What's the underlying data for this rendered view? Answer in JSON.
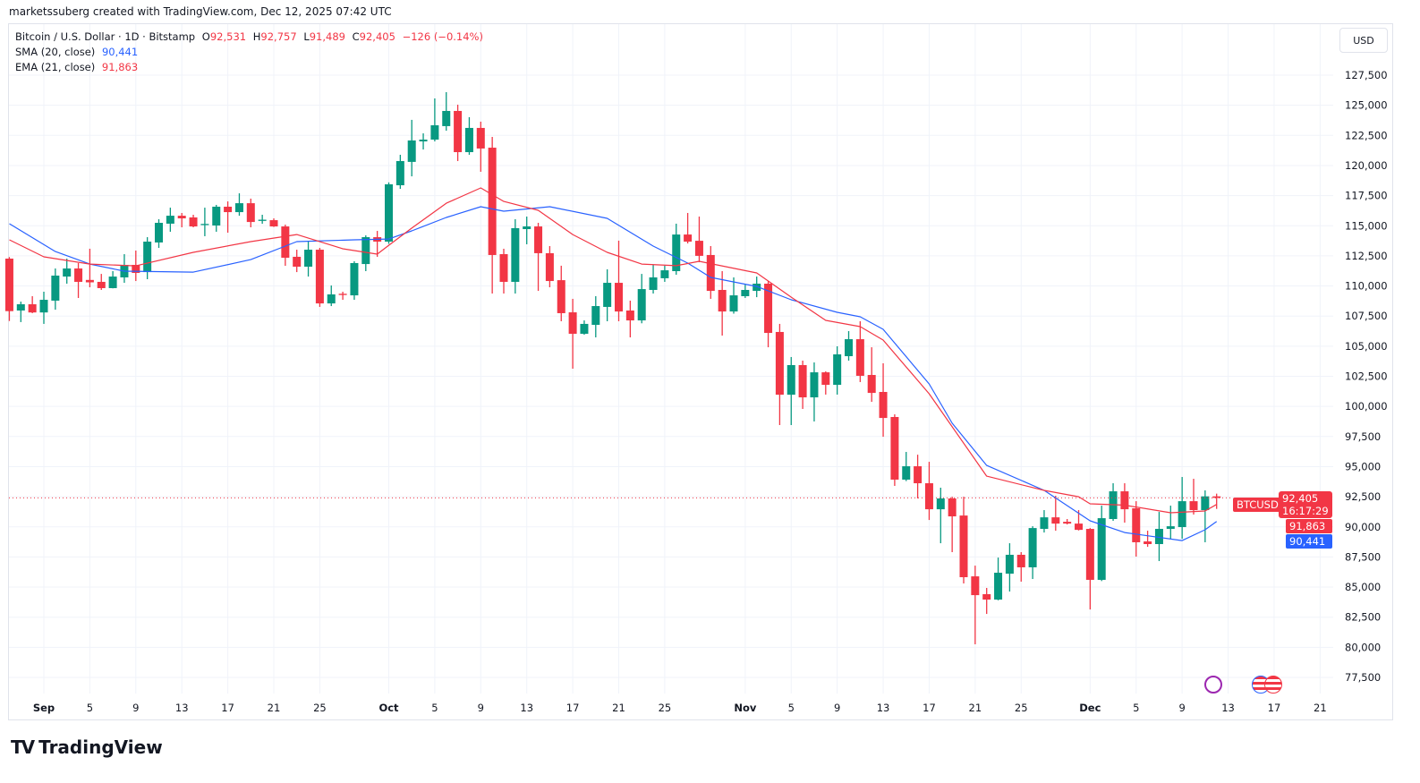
{
  "credit": "marketssuberg created with TradingView.com, Dec 12, 2025 07:42 UTC",
  "legend": {
    "symbol": "Bitcoin / U.S. Dollar · 1D · Bitstamp",
    "o_label": "O",
    "o": "92,531",
    "h_label": "H",
    "h": "92,757",
    "l_label": "L",
    "l": "91,489",
    "c_label": "C",
    "c": "92,405",
    "change": "−126 (−0.14%)",
    "sma_label": "SMA (20, close)",
    "sma_value": "90,441",
    "ema_label": "EMA (21, close)",
    "ema_value": "91,863"
  },
  "currency_button": "USD",
  "tags": {
    "symbol": "BTCUSD",
    "price": "92,405",
    "countdown": "16:17:29",
    "ema": "91,863",
    "sma": "90,441"
  },
  "footer": {
    "logo": "TV",
    "brand": "TradingView"
  },
  "icons": {
    "bottom_left": "sparkle-swirl-icon",
    "bottom_right": "flags-icon"
  },
  "colors": {
    "up": "#089981",
    "down": "#f23645",
    "sma": "#2962ff",
    "ema": "#f23645",
    "grid": "#f0f3fa"
  },
  "chart_data": {
    "type": "candlestick",
    "symbol": "BTCUSD",
    "interval": "1D",
    "ylim": [
      76000,
      129000
    ],
    "y_ticks": [
      "77,500",
      "80,000",
      "82,500",
      "85,000",
      "87,500",
      "90,000",
      "92,500",
      "95,000",
      "97,500",
      "100,000",
      "102,500",
      "105,000",
      "107,500",
      "110,000",
      "112,500",
      "115,000",
      "117,500",
      "120,000",
      "122,500",
      "125,000",
      "127,500"
    ],
    "x_ticks": [
      {
        "label": "Sep",
        "date": "2025-09-01"
      },
      {
        "label": "5",
        "date": "2025-09-05"
      },
      {
        "label": "9",
        "date": "2025-09-09"
      },
      {
        "label": "13",
        "date": "2025-09-13"
      },
      {
        "label": "17",
        "date": "2025-09-17"
      },
      {
        "label": "21",
        "date": "2025-09-21"
      },
      {
        "label": "25",
        "date": "2025-09-25"
      },
      {
        "label": "Oct",
        "date": "2025-10-01"
      },
      {
        "label": "5",
        "date": "2025-10-05"
      },
      {
        "label": "9",
        "date": "2025-10-09"
      },
      {
        "label": "13",
        "date": "2025-10-13"
      },
      {
        "label": "17",
        "date": "2025-10-17"
      },
      {
        "label": "21",
        "date": "2025-10-21"
      },
      {
        "label": "25",
        "date": "2025-10-25"
      },
      {
        "label": "Nov",
        "date": "2025-11-01"
      },
      {
        "label": "5",
        "date": "2025-11-05"
      },
      {
        "label": "9",
        "date": "2025-11-09"
      },
      {
        "label": "13",
        "date": "2025-11-13"
      },
      {
        "label": "17",
        "date": "2025-11-17"
      },
      {
        "label": "21",
        "date": "2025-11-21"
      },
      {
        "label": "25",
        "date": "2025-11-25"
      },
      {
        "label": "Dec",
        "date": "2025-12-01"
      },
      {
        "label": "5",
        "date": "2025-12-05"
      },
      {
        "label": "9",
        "date": "2025-12-09"
      },
      {
        "label": "13",
        "date": "2025-12-13"
      },
      {
        "label": "17",
        "date": "2025-12-17"
      },
      {
        "label": "21",
        "date": "2025-12-21"
      }
    ],
    "grid": true,
    "last_price": 92405,
    "candles_fields": [
      "date",
      "open",
      "high",
      "low",
      "close"
    ],
    "candles": [
      [
        "2025-08-29",
        112270,
        112400,
        107090,
        107910
      ],
      [
        "2025-08-30",
        107960,
        108700,
        107000,
        108480
      ],
      [
        "2025-08-31",
        108480,
        109150,
        107740,
        107800
      ],
      [
        "2025-09-01",
        107800,
        109520,
        106850,
        108850
      ],
      [
        "2025-09-02",
        108780,
        111450,
        108030,
        110860
      ],
      [
        "2025-09-03",
        110780,
        112270,
        110190,
        111450
      ],
      [
        "2025-09-04",
        111450,
        111900,
        109000,
        110340
      ],
      [
        "2025-09-05",
        110500,
        113090,
        109890,
        110300
      ],
      [
        "2025-09-06",
        110340,
        111000,
        109670,
        109820
      ],
      [
        "2025-09-07",
        109820,
        111230,
        109800,
        110780
      ],
      [
        "2025-09-08",
        110710,
        112640,
        110260,
        111750
      ],
      [
        "2025-09-09",
        111750,
        112940,
        110410,
        111080
      ],
      [
        "2025-09-10",
        111150,
        114050,
        110560,
        113680
      ],
      [
        "2025-09-11",
        113610,
        115540,
        113160,
        115240
      ],
      [
        "2025-09-12",
        115170,
        116500,
        114500,
        115830
      ],
      [
        "2025-09-13",
        115830,
        116060,
        114870,
        115610
      ],
      [
        "2025-09-14",
        115690,
        115910,
        114870,
        114940
      ],
      [
        "2025-09-15",
        115100,
        116500,
        114130,
        115150
      ],
      [
        "2025-09-16",
        115020,
        116730,
        114500,
        116580
      ],
      [
        "2025-09-17",
        116580,
        117020,
        114420,
        116130
      ],
      [
        "2025-09-18",
        116130,
        117690,
        115830,
        116870
      ],
      [
        "2025-09-19",
        116870,
        117250,
        114870,
        115310
      ],
      [
        "2025-09-20",
        115400,
        115910,
        115160,
        115500
      ],
      [
        "2025-09-21",
        115460,
        115610,
        114900,
        114940
      ],
      [
        "2025-09-22",
        114940,
        115090,
        111670,
        112340
      ],
      [
        "2025-09-23",
        112420,
        113010,
        111150,
        111600
      ],
      [
        "2025-09-24",
        111600,
        113680,
        110780,
        113010
      ],
      [
        "2025-09-25",
        113010,
        113160,
        108260,
        108550
      ],
      [
        "2025-09-26",
        108550,
        110040,
        108330,
        109300
      ],
      [
        "2025-09-27",
        109350,
        109520,
        108850,
        109250
      ],
      [
        "2025-09-28",
        109220,
        112050,
        108850,
        111900
      ],
      [
        "2025-09-29",
        111820,
        114200,
        111230,
        114050
      ],
      [
        "2025-09-30",
        114050,
        114570,
        112420,
        113680
      ],
      [
        "2025-10-01",
        113680,
        118600,
        113500,
        118440
      ],
      [
        "2025-10-02",
        118360,
        120890,
        118060,
        120370
      ],
      [
        "2025-10-03",
        120300,
        123790,
        119100,
        122080
      ],
      [
        "2025-10-04",
        122000,
        122670,
        121330,
        122150
      ],
      [
        "2025-10-05",
        122150,
        125570,
        122000,
        123340
      ],
      [
        "2025-10-06",
        123270,
        126090,
        122890,
        124530
      ],
      [
        "2025-10-07",
        124530,
        125050,
        120370,
        121110
      ],
      [
        "2025-10-08",
        121110,
        124010,
        120890,
        123120
      ],
      [
        "2025-10-09",
        123120,
        123640,
        119480,
        121410
      ],
      [
        "2025-10-10",
        121480,
        122370,
        109370,
        112570
      ],
      [
        "2025-10-11",
        112640,
        113090,
        109370,
        110340
      ],
      [
        "2025-10-12",
        110340,
        115540,
        109370,
        114800
      ],
      [
        "2025-10-13",
        114720,
        115760,
        113460,
        114940
      ],
      [
        "2025-10-14",
        114940,
        115240,
        109590,
        112720
      ],
      [
        "2025-10-15",
        112720,
        113310,
        109890,
        110410
      ],
      [
        "2025-10-16",
        110480,
        111680,
        107070,
        107740
      ],
      [
        "2025-10-17",
        107810,
        108930,
        103130,
        106030
      ],
      [
        "2025-10-18",
        106030,
        107140,
        105950,
        106850
      ],
      [
        "2025-10-19",
        106770,
        109150,
        105730,
        108330
      ],
      [
        "2025-10-20",
        108260,
        111380,
        107070,
        110260
      ],
      [
        "2025-10-21",
        110260,
        113760,
        107070,
        107880
      ],
      [
        "2025-10-22",
        107960,
        108780,
        105730,
        107140
      ],
      [
        "2025-10-23",
        107140,
        111000,
        106900,
        109740
      ],
      [
        "2025-10-24",
        109670,
        111750,
        109370,
        110710
      ],
      [
        "2025-10-25",
        110640,
        111680,
        110340,
        111300
      ],
      [
        "2025-10-26",
        111230,
        115170,
        110930,
        114270
      ],
      [
        "2025-10-27",
        114270,
        116060,
        113530,
        113680
      ],
      [
        "2025-10-28",
        113750,
        115760,
        111970,
        112500
      ],
      [
        "2025-10-29",
        112570,
        113310,
        108930,
        109590
      ],
      [
        "2025-10-30",
        109670,
        111230,
        105880,
        107880
      ],
      [
        "2025-10-31",
        107880,
        110710,
        107700,
        109220
      ],
      [
        "2025-11-01",
        109150,
        110110,
        109000,
        109670
      ],
      [
        "2025-11-02",
        109590,
        110780,
        109070,
        110190
      ],
      [
        "2025-11-03",
        110190,
        110410,
        104910,
        106100
      ],
      [
        "2025-11-04",
        106180,
        106850,
        98450,
        100970
      ],
      [
        "2025-11-05",
        100970,
        104100,
        98450,
        103430
      ],
      [
        "2025-11-06",
        103430,
        103800,
        99790,
        100750
      ],
      [
        "2025-11-07",
        100750,
        103650,
        98750,
        102830
      ],
      [
        "2025-11-08",
        102830,
        102910,
        100980,
        101790
      ],
      [
        "2025-11-09",
        101790,
        104990,
        100980,
        104320
      ],
      [
        "2025-11-10",
        104170,
        106250,
        103800,
        105580
      ],
      [
        "2025-11-11",
        105580,
        107070,
        102020,
        102540
      ],
      [
        "2025-11-12",
        102610,
        104910,
        100380,
        101120
      ],
      [
        "2025-11-13",
        101200,
        103580,
        97480,
        99040
      ],
      [
        "2025-11-14",
        99120,
        99340,
        93400,
        93920
      ],
      [
        "2025-11-15",
        93920,
        96220,
        93800,
        95030
      ],
      [
        "2025-11-16",
        95030,
        95990,
        92360,
        93620
      ],
      [
        "2025-11-17",
        93620,
        95400,
        90570,
        91460
      ],
      [
        "2025-11-18",
        91460,
        93250,
        88640,
        92360
      ],
      [
        "2025-11-19",
        92360,
        92500,
        87900,
        90870
      ],
      [
        "2025-11-20",
        90940,
        92500,
        85300,
        85820
      ],
      [
        "2025-11-21",
        85890,
        86780,
        80250,
        84330
      ],
      [
        "2025-11-22",
        84410,
        84930,
        82770,
        83960
      ],
      [
        "2025-11-23",
        83960,
        87450,
        83900,
        86190
      ],
      [
        "2025-11-24",
        86110,
        88640,
        84630,
        87680
      ],
      [
        "2025-11-25",
        87680,
        87900,
        85450,
        86640
      ],
      [
        "2025-11-26",
        86640,
        90050,
        85670,
        89900
      ],
      [
        "2025-11-27",
        89830,
        91390,
        89530,
        90790
      ],
      [
        "2025-11-28",
        90790,
        92580,
        89680,
        90270
      ],
      [
        "2025-11-29",
        90420,
        90650,
        90200,
        90270
      ],
      [
        "2025-11-30",
        90270,
        91390,
        89700,
        89750
      ],
      [
        "2025-12-01",
        89830,
        89900,
        83140,
        85600
      ],
      [
        "2025-12-02",
        85600,
        91760,
        85500,
        90720
      ],
      [
        "2025-12-03",
        90650,
        93620,
        90500,
        92950
      ],
      [
        "2025-12-04",
        92950,
        93620,
        90350,
        91460
      ],
      [
        "2025-12-05",
        91540,
        92130,
        87530,
        88720
      ],
      [
        "2025-12-06",
        88790,
        89680,
        88340,
        88570
      ],
      [
        "2025-12-07",
        88570,
        91240,
        87160,
        89830
      ],
      [
        "2025-12-08",
        89830,
        91760,
        89010,
        90050
      ],
      [
        "2025-12-09",
        89980,
        94140,
        89010,
        92130
      ],
      [
        "2025-12-10",
        92130,
        93990,
        91020,
        91390
      ],
      [
        "2025-12-11",
        91390,
        93030,
        88720,
        92531
      ],
      [
        "2025-12-12",
        92531,
        92757,
        91489,
        92405
      ]
    ],
    "series": [
      {
        "name": "SMA (20, close)",
        "type": "line",
        "color": "#2962ff",
        "points": [
          [
            "2025-08-29",
            115170
          ],
          [
            "2025-09-02",
            112860
          ],
          [
            "2025-09-05",
            111820
          ],
          [
            "2025-09-08",
            111230
          ],
          [
            "2025-09-14",
            111150
          ],
          [
            "2025-09-19",
            112190
          ],
          [
            "2025-09-23",
            113680
          ],
          [
            "2025-09-28",
            113830
          ],
          [
            "2025-10-01",
            113900
          ],
          [
            "2025-10-03",
            114570
          ],
          [
            "2025-10-06",
            115690
          ],
          [
            "2025-10-09",
            116580
          ],
          [
            "2025-10-11",
            116210
          ],
          [
            "2025-10-15",
            116580
          ],
          [
            "2025-10-20",
            115610
          ],
          [
            "2025-10-24",
            113310
          ],
          [
            "2025-10-27",
            111900
          ],
          [
            "2025-10-29",
            110710
          ],
          [
            "2025-11-02",
            109960
          ],
          [
            "2025-11-05",
            108850
          ],
          [
            "2025-11-09",
            107810
          ],
          [
            "2025-11-11",
            107440
          ],
          [
            "2025-11-13",
            106400
          ],
          [
            "2025-11-17",
            101870
          ],
          [
            "2025-11-19",
            98600
          ],
          [
            "2025-11-22",
            95100
          ],
          [
            "2025-11-27",
            93030
          ],
          [
            "2025-12-01",
            90500
          ],
          [
            "2025-12-04",
            89530
          ],
          [
            "2025-12-09",
            88860
          ],
          [
            "2025-12-11",
            89760
          ],
          [
            "2025-12-12",
            90441
          ]
        ]
      },
      {
        "name": "EMA (21, close)",
        "type": "line",
        "color": "#f23645",
        "points": [
          [
            "2025-08-29",
            113830
          ],
          [
            "2025-09-01",
            112420
          ],
          [
            "2025-09-05",
            111820
          ],
          [
            "2025-09-09",
            111670
          ],
          [
            "2025-09-14",
            112790
          ],
          [
            "2025-09-19",
            113680
          ],
          [
            "2025-09-23",
            114270
          ],
          [
            "2025-09-27",
            113090
          ],
          [
            "2025-09-30",
            112640
          ],
          [
            "2025-10-01",
            113380
          ],
          [
            "2025-10-03",
            114800
          ],
          [
            "2025-10-06",
            116870
          ],
          [
            "2025-10-09",
            118140
          ],
          [
            "2025-10-11",
            117020
          ],
          [
            "2025-10-14",
            116280
          ],
          [
            "2025-10-17",
            114270
          ],
          [
            "2025-10-20",
            112790
          ],
          [
            "2025-10-23",
            111820
          ],
          [
            "2025-10-26",
            111680
          ],
          [
            "2025-10-28",
            112050
          ],
          [
            "2025-11-02",
            111080
          ],
          [
            "2025-11-05",
            109070
          ],
          [
            "2025-11-08",
            107140
          ],
          [
            "2025-11-11",
            106620
          ],
          [
            "2025-11-13",
            105510
          ],
          [
            "2025-11-17",
            101050
          ],
          [
            "2025-11-22",
            94210
          ],
          [
            "2025-11-27",
            93030
          ],
          [
            "2025-11-30",
            92500
          ],
          [
            "2025-12-01",
            91910
          ],
          [
            "2025-12-04",
            91800
          ],
          [
            "2025-12-08",
            91170
          ],
          [
            "2025-12-11",
            91320
          ],
          [
            "2025-12-12",
            91863
          ]
        ]
      }
    ]
  }
}
